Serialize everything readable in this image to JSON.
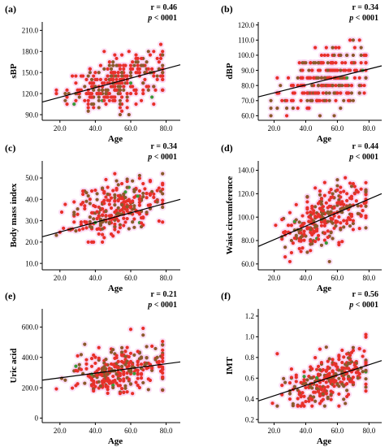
{
  "colors": {
    "point_brown": "#8B5A2B",
    "point_red": "#E8302A",
    "point_green": "#3A9A3A",
    "halo": "#F7C9EE",
    "fit_line": "#000000"
  },
  "chart_data": [
    {
      "type": "scatter",
      "panel_label": "(a)",
      "ylabel": "sBP",
      "xlabel": "Age",
      "r_text": "r = 0.46",
      "p_label": "p",
      "p_rest": " < 0001",
      "xlim": [
        10,
        88
      ],
      "ylim": [
        82,
        222
      ],
      "xticks": [
        20,
        40,
        60,
        80
      ],
      "xtick_labels": [
        "20.0",
        "40.0",
        "60.0",
        "80.0"
      ],
      "yticks": [
        90,
        120,
        150,
        180,
        210
      ],
      "ytick_labels": [
        "90.0",
        "120.0",
        "150.0",
        "180.0",
        "210.0"
      ],
      "fit": {
        "x": [
          10,
          88
        ],
        "y": [
          108,
          161
        ]
      },
      "cloud": {
        "x_mean": 53,
        "x_sd": 14,
        "x_min": 18,
        "x_max": 78,
        "slope": 0.68,
        "intercept": 101,
        "noise": 17,
        "n": 300,
        "step": 5,
        "y_min": 90,
        "y_max": 205
      }
    },
    {
      "type": "scatter",
      "panel_label": "(b)",
      "ylabel": "dBP",
      "xlabel": "Age",
      "r_text": "r = 0.34",
      "p_label": "p",
      "p_rest": " < 0001",
      "xlim": [
        10,
        88
      ],
      "ylim": [
        57,
        122
      ],
      "xticks": [
        20,
        40,
        60,
        80
      ],
      "xtick_labels": [
        "20.0",
        "40.0",
        "60.0",
        "80.0"
      ],
      "yticks": [
        60,
        70,
        80,
        90,
        100,
        110,
        120
      ],
      "ytick_labels": [
        "60.0",
        "70.0",
        "80.0",
        "90.0",
        "100.0",
        "110.0",
        "120.0"
      ],
      "fit": {
        "x": [
          10,
          88
        ],
        "y": [
          72.5,
          93
        ]
      },
      "cloud": {
        "x_mean": 53,
        "x_sd": 14,
        "x_min": 18,
        "x_max": 78,
        "slope": 0.26,
        "intercept": 70,
        "noise": 10,
        "n": 280,
        "step": 5,
        "y_min": 60,
        "y_max": 110
      }
    },
    {
      "type": "scatter",
      "panel_label": "(c)",
      "ylabel": "Body mass index",
      "xlabel": "Age",
      "r_text": "r = 0.34",
      "p_label": "p",
      "p_rest": " < 0001",
      "xlim": [
        10,
        88
      ],
      "ylim": [
        7,
        58
      ],
      "xticks": [
        20,
        40,
        60,
        80
      ],
      "xtick_labels": [
        "20.0",
        "40.0",
        "60.0",
        "80.0"
      ],
      "yticks": [
        10,
        20,
        30,
        40,
        50
      ],
      "ytick_labels": [
        "10.0",
        "20.0",
        "30.0",
        "40.0",
        "50.0"
      ],
      "fit": {
        "x": [
          10,
          88
        ],
        "y": [
          22.5,
          40
        ]
      },
      "cloud": {
        "x_mean": 53,
        "x_sd": 14,
        "x_min": 18,
        "x_max": 78,
        "slope": 0.22,
        "intercept": 24,
        "noise": 6.5,
        "n": 300,
        "step": 0,
        "y_min": 20,
        "y_max": 52
      }
    },
    {
      "type": "scatter",
      "panel_label": "(d)",
      "ylabel": "Waist circumference",
      "xlabel": "Age",
      "r_text": "r = 0.44",
      "p_label": "p",
      "p_rest": " < 0001",
      "xlim": [
        10,
        88
      ],
      "ylim": [
        55,
        148
      ],
      "xticks": [
        20,
        40,
        60,
        80
      ],
      "xtick_labels": [
        "20.0",
        "40.0",
        "60.0",
        "80.0"
      ],
      "yticks": [
        60,
        80,
        100,
        120,
        140
      ],
      "ytick_labels": [
        "60.0",
        "80.0",
        "100.0",
        "120.0",
        "140.0"
      ],
      "fit": {
        "x": [
          10,
          88
        ],
        "y": [
          75,
          120
        ]
      },
      "cloud": {
        "x_mean": 53,
        "x_sd": 14,
        "x_min": 18,
        "x_max": 78,
        "slope": 0.58,
        "intercept": 69,
        "noise": 12,
        "n": 300,
        "step": 0,
        "y_min": 62,
        "y_max": 142
      }
    },
    {
      "type": "scatter",
      "panel_label": "(e)",
      "ylabel": "Uric acid",
      "xlabel": "Age",
      "r_text": "r = 0.21",
      "p_label": "p",
      "p_rest": " < 0001",
      "xlim": [
        10,
        88
      ],
      "ylim": [
        -30,
        720
      ],
      "xticks": [
        20,
        40,
        60,
        80
      ],
      "xtick_labels": [
        "20.0",
        "40.0",
        "60.0",
        "80.0"
      ],
      "yticks": [
        0,
        200,
        400,
        600
      ],
      "ytick_labels": [
        "0",
        "200.0",
        "400.0",
        "600.0"
      ],
      "fit": {
        "x": [
          10,
          88
        ],
        "y": [
          250,
          370
        ]
      },
      "cloud": {
        "x_mean": 53,
        "x_sd": 14,
        "x_min": 18,
        "x_max": 78,
        "slope": 1.55,
        "intercept": 235,
        "noise": 80,
        "n": 300,
        "step": 0,
        "y_min": 90,
        "y_max": 620
      }
    },
    {
      "type": "scatter",
      "panel_label": "(f)",
      "ylabel": "IMT",
      "xlabel": "Age",
      "r_text": "r = 0.56",
      "p_label": "p",
      "p_rest": " < 0001",
      "xlim": [
        10,
        88
      ],
      "ylim": [
        0.17,
        1.27
      ],
      "xticks": [
        20,
        40,
        60,
        80
      ],
      "xtick_labels": [
        "20.0",
        "40.0",
        "60.0",
        "80.0"
      ],
      "yticks": [
        0.2,
        0.4,
        0.6,
        0.8,
        1.0,
        1.2
      ],
      "ytick_labels": [
        "0.2",
        "0.4",
        "0.6",
        "0.8",
        "1.0",
        "1.2"
      ],
      "fit": {
        "x": [
          10,
          88
        ],
        "y": [
          0.38,
          0.77
        ]
      },
      "cloud": {
        "x_mean": 53,
        "x_sd": 14,
        "x_min": 18,
        "x_max": 78,
        "slope": 0.005,
        "intercept": 0.33,
        "noise": 0.11,
        "n": 300,
        "step": 0,
        "y_min": 0.33,
        "y_max": 1.15
      }
    }
  ]
}
